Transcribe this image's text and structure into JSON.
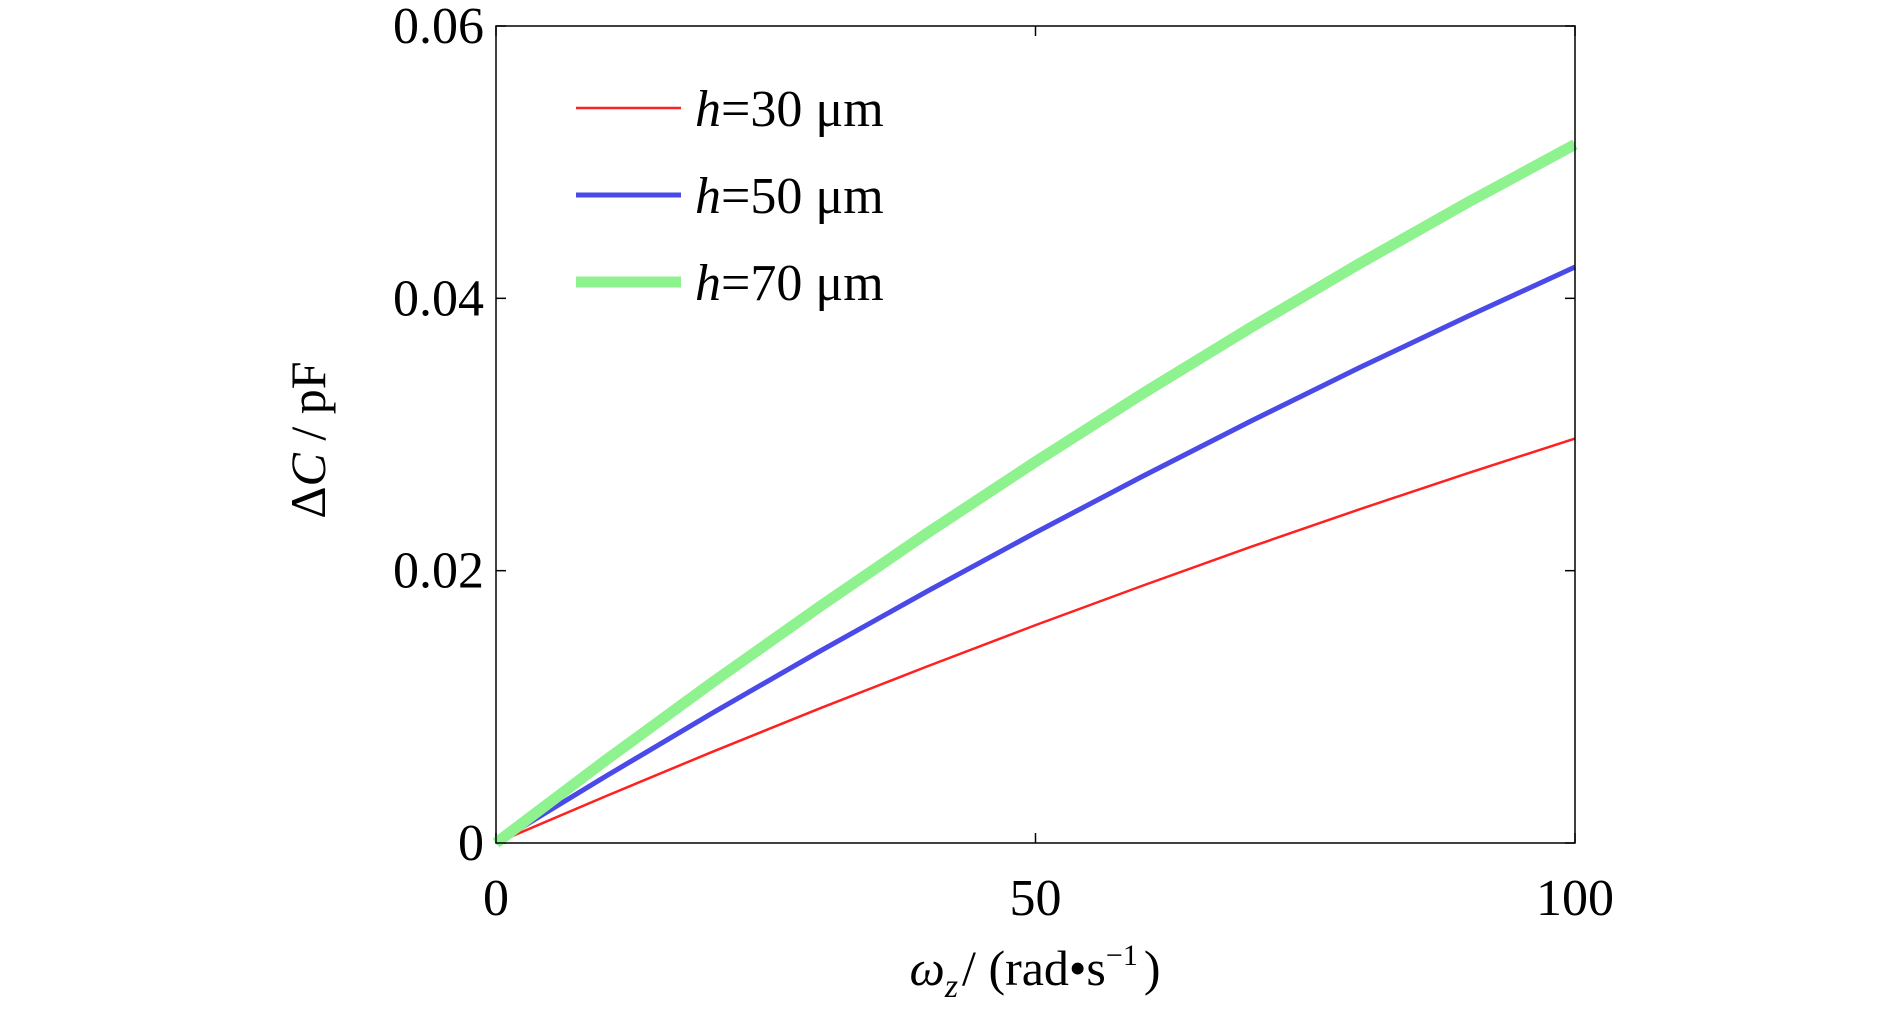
{
  "chart_data": {
    "type": "line",
    "title": "",
    "xlabel": {
      "symbol": "ω",
      "subscript": "z",
      "rest": "/ (rad•s",
      "sup": "−1",
      "close": ")"
    },
    "ylabel": {
      "delta": "Δ",
      "symbol": "C",
      "rest": " / pF"
    },
    "xlim": [
      0,
      100
    ],
    "ylim": [
      0,
      0.06
    ],
    "xticks": [
      0,
      50,
      100
    ],
    "xtick_labels": [
      "0",
      "50",
      "100"
    ],
    "yticks": [
      0,
      0.02,
      0.04,
      0.06
    ],
    "ytick_labels": [
      "0",
      "0.02",
      "0.04",
      "0.06"
    ],
    "grid": false,
    "legend_position": "top-left",
    "x": [
      0,
      10,
      20,
      30,
      40,
      50,
      60,
      70,
      80,
      90,
      100
    ],
    "series": [
      {
        "name": "h=30 μm",
        "label_italic": "h",
        "label_rest": "=30 μm",
        "color": "#ff2020",
        "width": 2.5,
        "values": [
          0,
          0.00338,
          0.00668,
          0.00988,
          0.01298,
          0.016,
          0.01892,
          0.02176,
          0.0245,
          0.02714,
          0.0297
        ]
      },
      {
        "name": "h=50 μm",
        "label_italic": "h",
        "label_rest": "=50 μm",
        "color": "#4a4ae8",
        "width": 5,
        "values": [
          0,
          0.00482,
          0.00952,
          0.01408,
          0.0185,
          0.0228,
          0.02696,
          0.031,
          0.0349,
          0.03866,
          0.0423
        ]
      },
      {
        "name": "h=70 μm",
        "label_italic": "h",
        "label_rest": "=70 μm",
        "color": "#8ef28e",
        "width": 11,
        "values": [
          0,
          0.00598,
          0.01176,
          0.01736,
          0.02278,
          0.028,
          0.03304,
          0.03788,
          0.04254,
          0.04702,
          0.0513
        ]
      }
    ]
  }
}
